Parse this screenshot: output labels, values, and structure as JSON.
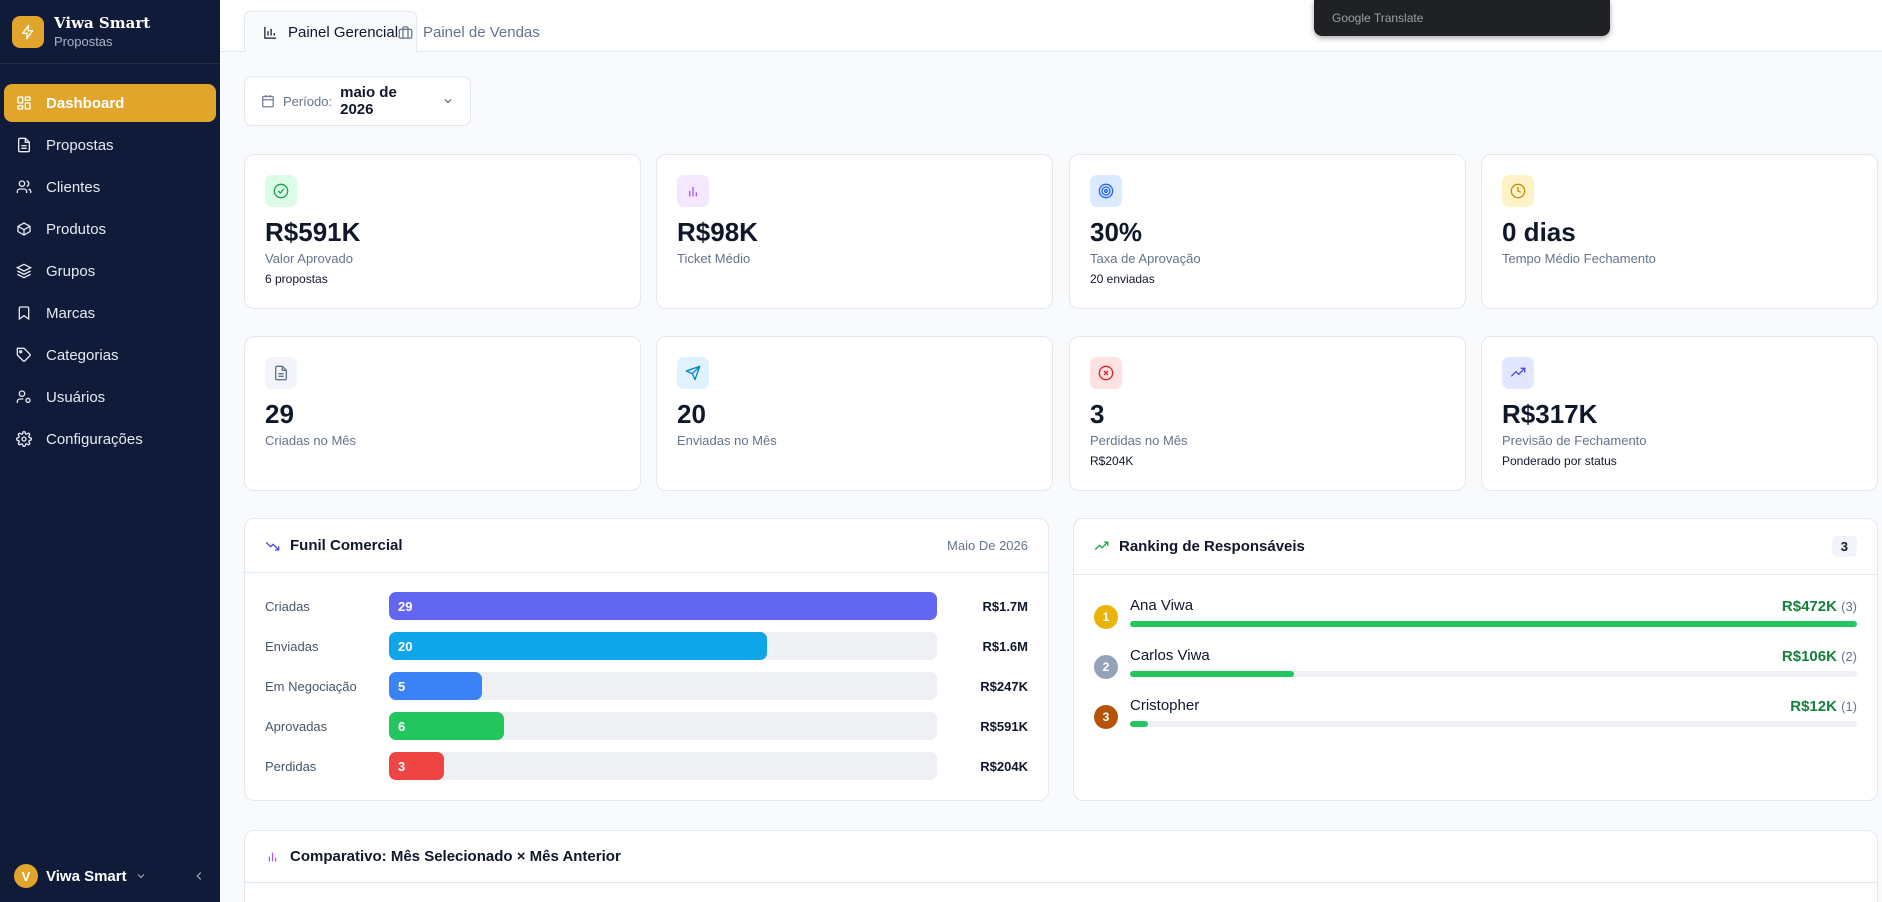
{
  "brand": {
    "name": "Viwa Smart",
    "subtitle": "Propostas",
    "logo_icon": "lightning-icon",
    "accent": "#e2a52b"
  },
  "sidebar": {
    "items": [
      {
        "label": "Dashboard",
        "icon": "dashboard-icon",
        "active": true
      },
      {
        "label": "Propostas",
        "icon": "document-icon"
      },
      {
        "label": "Clientes",
        "icon": "users-icon"
      },
      {
        "label": "Produtos",
        "icon": "box-icon"
      },
      {
        "label": "Grupos",
        "icon": "layers-icon"
      },
      {
        "label": "Marcas",
        "icon": "bookmark-icon"
      },
      {
        "label": "Categorias",
        "icon": "tag-icon"
      },
      {
        "label": "Usuários",
        "icon": "user-cog-icon"
      },
      {
        "label": "Configurações",
        "icon": "gear-icon"
      }
    ],
    "footer": {
      "avatar_initial": "V",
      "name": "Viwa Smart"
    }
  },
  "tabs": [
    {
      "label": "Painel Gerencial",
      "active": true
    },
    {
      "label": "Painel de Vendas",
      "active": false
    }
  ],
  "translate_bar": {
    "text": "Google Translate"
  },
  "period": {
    "label": "Período:",
    "value": "maio de 2026"
  },
  "kpis": [
    {
      "value": "R$591K",
      "label": "Valor Aprovado",
      "sub": "6 propostas",
      "icon": "check-circle-icon",
      "color": "#16a34a",
      "bg": "#dcfce7"
    },
    {
      "value": "R$98K",
      "label": "Ticket Médio",
      "sub": "",
      "icon": "bar-chart-icon",
      "color": "#a855f7",
      "bg": "#f3e8ff"
    },
    {
      "value": "30%",
      "label": "Taxa de Aprovação",
      "sub": "20 enviadas",
      "icon": "target-icon",
      "color": "#2563eb",
      "bg": "#dbeafe"
    },
    {
      "value": "0 dias",
      "label": "Tempo Médio Fechamento",
      "sub": "",
      "icon": "clock-icon",
      "color": "#ca8a04",
      "bg": "#fef3c7"
    },
    {
      "value": "29",
      "label": "Criadas no Mês",
      "sub": "",
      "icon": "document-icon",
      "color": "#64748b",
      "bg": "#f1f5f9"
    },
    {
      "value": "20",
      "label": "Enviadas no Mês",
      "sub": "",
      "icon": "send-icon",
      "color": "#0284c7",
      "bg": "#e0f2fe"
    },
    {
      "value": "3",
      "label": "Perdidas no Mês",
      "sub": "R$204K",
      "icon": "x-circle-icon",
      "color": "#dc2626",
      "bg": "#fee2e2"
    },
    {
      "value": "R$317K",
      "label": "Previsão de Fechamento",
      "sub": "Ponderado por status",
      "icon": "trending-up-icon",
      "color": "#4f46e5",
      "bg": "#e0e7ff"
    }
  ],
  "funnel": {
    "title": "Funil Comercial",
    "period": "Maio De 2026",
    "rows": [
      {
        "label": "Criadas",
        "count": "29",
        "fraction": 1.0,
        "value": "R$1.7M",
        "color": "#6366f1"
      },
      {
        "label": "Enviadas",
        "count": "20",
        "fraction": 0.69,
        "value": "R$1.6M",
        "color": "#0ea5e9"
      },
      {
        "label": "Em Negociação",
        "count": "5",
        "fraction": 0.17,
        "value": "R$247K",
        "color": "#3b82f6"
      },
      {
        "label": "Aprovadas",
        "count": "6",
        "fraction": 0.21,
        "value": "R$591K",
        "color": "#22c55e"
      },
      {
        "label": "Perdidas",
        "count": "3",
        "fraction": 0.1,
        "value": "R$204K",
        "color": "#ef4444"
      }
    ]
  },
  "ranking": {
    "title": "Ranking de Responsáveis",
    "count": "3",
    "rows": [
      {
        "pos": "1",
        "name": "Ana Viwa",
        "value": "R$472K",
        "qty": "(3)",
        "fraction": 1.0,
        "pos_color": "#eab308"
      },
      {
        "pos": "2",
        "name": "Carlos Viwa",
        "value": "R$106K",
        "qty": "(2)",
        "fraction": 0.225,
        "pos_color": "#94a3b8"
      },
      {
        "pos": "3",
        "name": "Cristopher",
        "value": "R$12K",
        "qty": "(1)",
        "fraction": 0.025,
        "pos_color": "#b45309"
      }
    ]
  },
  "comparison": {
    "title": "Comparativo: Mês Selecionado × Mês Anterior"
  }
}
